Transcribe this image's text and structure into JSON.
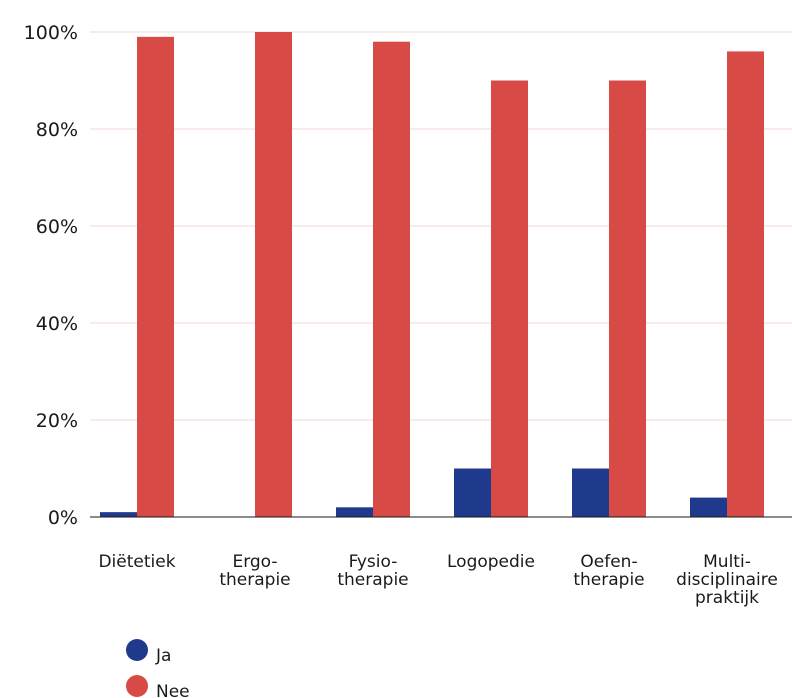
{
  "chart_data": {
    "type": "bar",
    "categories": [
      [
        "Diëtetiek"
      ],
      [
        "Ergo-",
        "therapie"
      ],
      [
        "Fysio-",
        "therapie"
      ],
      [
        "Logopedie"
      ],
      [
        "Oefen-",
        "therapie"
      ],
      [
        "Multi-",
        "disciplinaire",
        "praktijk"
      ]
    ],
    "series": [
      {
        "name": "Ja",
        "color": "#1f3a8c",
        "values": [
          1,
          0,
          2,
          10,
          10,
          4
        ]
      },
      {
        "name": "Nee",
        "color": "#d84a45",
        "values": [
          99,
          100,
          98,
          90,
          90,
          96
        ]
      }
    ],
    "ylim": [
      0,
      100
    ],
    "yticks": [
      0,
      20,
      40,
      60,
      80,
      100
    ],
    "ytick_labels": [
      "0%",
      "20%",
      "40%",
      "60%",
      "80%",
      "100%"
    ],
    "grid": true,
    "gridcolor": "#efd9d6",
    "legend": "bottom-left"
  }
}
